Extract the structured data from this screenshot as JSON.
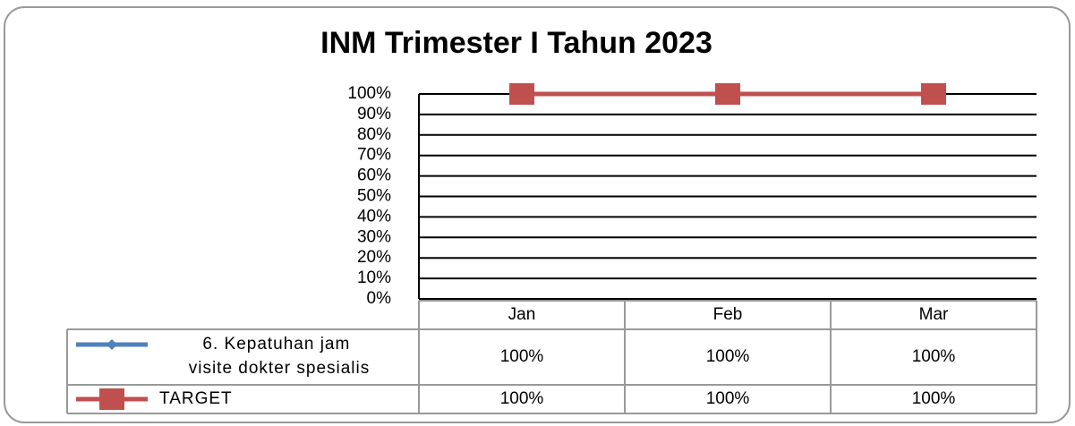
{
  "chart_data": {
    "type": "line",
    "title": "INM Trimester I Tahun 2023",
    "categories": [
      "Jan",
      "Feb",
      "Mar"
    ],
    "series": [
      {
        "name": "6. Kepatuhan jam visite dokter spesialis",
        "color": "#4f81bd",
        "values": [
          100,
          100,
          100
        ],
        "value_labels": [
          "100%",
          "100%",
          "100%"
        ]
      },
      {
        "name": "TARGET",
        "color": "#c0504d",
        "values": [
          100,
          100,
          100
        ],
        "value_labels": [
          "100%",
          "100%",
          "100%"
        ]
      }
    ],
    "ylim": [
      0,
      100
    ],
    "yticks": [
      {
        "value": 0,
        "label": "0%"
      },
      {
        "value": 10,
        "label": "10%"
      },
      {
        "value": 20,
        "label": "20%"
      },
      {
        "value": 30,
        "label": "30%"
      },
      {
        "value": 40,
        "label": "40%"
      },
      {
        "value": 50,
        "label": "50%"
      },
      {
        "value": 60,
        "label": "60%"
      },
      {
        "value": 70,
        "label": "70%"
      },
      {
        "value": 80,
        "label": "80%"
      },
      {
        "value": 90,
        "label": "90%"
      },
      {
        "value": 100,
        "label": "100%"
      }
    ],
    "grid": true
  }
}
